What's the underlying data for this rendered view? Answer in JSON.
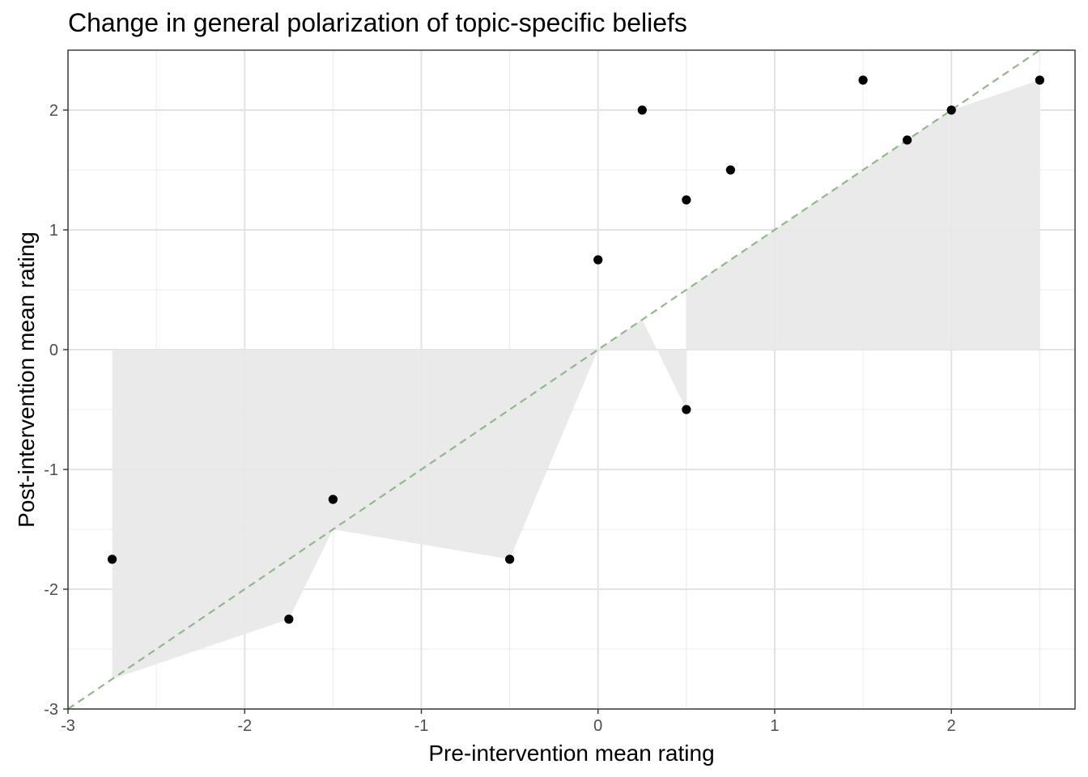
{
  "chart_data": {
    "type": "scatter",
    "title": "Change in general polarization of topic-specific beliefs",
    "xlabel": "Pre-intervention mean rating",
    "ylabel": "Post-intervention mean rating",
    "xlim": [
      -3,
      2.7
    ],
    "ylim": [
      -3,
      2.5
    ],
    "x_ticks": [
      -3,
      -2,
      -1,
      0,
      1,
      2
    ],
    "x_tick_labels": [
      "-3",
      "-2",
      "-1",
      "0",
      "1",
      "2"
    ],
    "y_ticks": [
      -3,
      -2,
      -1,
      0,
      1,
      2
    ],
    "y_tick_labels": [
      "-3",
      "-2",
      "-1",
      "0",
      "1",
      "2"
    ],
    "grid": true,
    "reference_line": {
      "slope": 1,
      "intercept": 0,
      "style": "dashed",
      "color": "#8fb98a"
    },
    "band_color": "#e8e8e8",
    "band_boundary": [
      [
        -2.75,
        -2.75
      ],
      [
        -1.75,
        -2.25
      ],
      [
        -1.5,
        -1.5
      ],
      [
        -0.5,
        -1.75
      ],
      [
        0,
        0
      ],
      [
        0.25,
        0.25
      ],
      [
        0.5,
        -0.5
      ],
      [
        0.5,
        0.5
      ],
      [
        0.75,
        0.75
      ],
      [
        1.5,
        1.5
      ],
      [
        1.75,
        1.75
      ],
      [
        2,
        2
      ],
      [
        2.5,
        2.25
      ]
    ],
    "points": [
      {
        "x": -2.75,
        "y": -1.75
      },
      {
        "x": -1.75,
        "y": -2.25
      },
      {
        "x": -1.5,
        "y": -1.25
      },
      {
        "x": -0.5,
        "y": -1.75
      },
      {
        "x": 0,
        "y": 0.75
      },
      {
        "x": 0.25,
        "y": 2
      },
      {
        "x": 0.5,
        "y": 1.25
      },
      {
        "x": 0.5,
        "y": -0.5
      },
      {
        "x": 0.75,
        "y": 1.5
      },
      {
        "x": 1.5,
        "y": 2.25
      },
      {
        "x": 1.75,
        "y": 1.75
      },
      {
        "x": 2,
        "y": 2
      },
      {
        "x": 2.5,
        "y": 2.25
      }
    ],
    "point_color": "#000000"
  }
}
